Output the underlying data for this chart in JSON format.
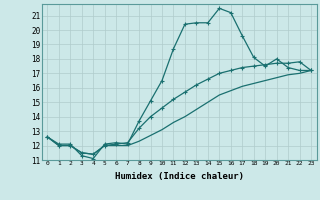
{
  "xlabel": "Humidex (Indice chaleur)",
  "background_color": "#cce8e8",
  "grid_color": "#b0cccc",
  "line_color": "#1a7070",
  "xlim": [
    -0.5,
    23.5
  ],
  "ylim": [
    11,
    21.8
  ],
  "ytick_values": [
    11,
    12,
    13,
    14,
    15,
    16,
    17,
    18,
    19,
    20,
    21
  ],
  "series1_x": [
    0,
    1,
    2,
    3,
    4,
    5,
    6,
    7,
    8,
    9,
    10,
    11,
    12,
    13,
    14,
    15,
    16,
    17,
    18,
    19,
    20,
    21,
    22,
    23
  ],
  "series1_y": [
    12.6,
    12.1,
    12.1,
    11.3,
    11.1,
    12.1,
    12.2,
    12.1,
    13.7,
    15.1,
    16.5,
    18.7,
    20.4,
    20.5,
    20.5,
    21.5,
    21.2,
    19.6,
    18.1,
    17.5,
    18.0,
    17.4,
    17.2,
    17.2
  ],
  "series2_x": [
    0,
    1,
    2,
    3,
    4,
    5,
    6,
    7,
    8,
    9,
    10,
    11,
    12,
    13,
    14,
    15,
    16,
    17,
    18,
    19,
    20,
    21,
    22,
    23
  ],
  "series2_y": [
    12.6,
    12.0,
    12.0,
    11.5,
    11.4,
    12.0,
    12.1,
    12.2,
    13.2,
    14.0,
    14.6,
    15.2,
    15.7,
    16.2,
    16.6,
    17.0,
    17.2,
    17.4,
    17.5,
    17.6,
    17.7,
    17.7,
    17.8,
    17.2
  ],
  "series3_x": [
    0,
    1,
    2,
    3,
    4,
    5,
    6,
    7,
    8,
    9,
    10,
    11,
    12,
    13,
    14,
    15,
    16,
    17,
    18,
    19,
    20,
    21,
    22,
    23
  ],
  "series3_y": [
    12.6,
    12.0,
    12.0,
    11.5,
    11.4,
    12.0,
    12.0,
    12.0,
    12.3,
    12.7,
    13.1,
    13.6,
    14.0,
    14.5,
    15.0,
    15.5,
    15.8,
    16.1,
    16.3,
    16.5,
    16.7,
    16.9,
    17.0,
    17.2
  ]
}
